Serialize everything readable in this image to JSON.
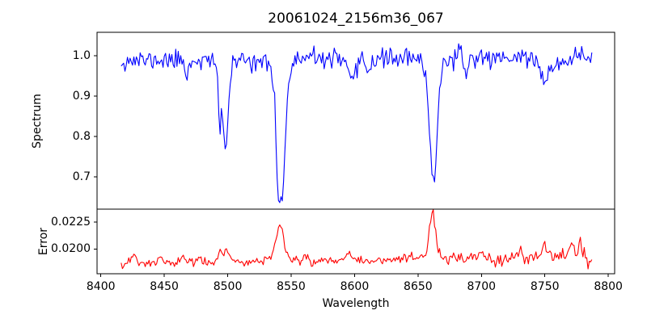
{
  "labels": {
    "title": "20061024_2156m36_067",
    "xlabel": "Wavelength",
    "ylabel_top": "Spectrum",
    "ylabel_bottom": "Error"
  },
  "chart_data": [
    {
      "type": "line",
      "name": "spectrum",
      "title": "20061024_2156m36_067",
      "ylabel": "Spectrum",
      "color": "#0000ff",
      "grid": false,
      "legend": "none",
      "xlim": [
        8397,
        8805
      ],
      "ylim": [
        0.62,
        1.058
      ],
      "yticks": [
        0.7,
        0.8,
        0.9,
        1.0
      ],
      "ytick_labels": [
        "0.7",
        "0.8",
        "0.9",
        "1.0"
      ],
      "x_start": 8416,
      "x_end": 8787,
      "n_points": 372,
      "baseline_start": 0.988,
      "baseline_end": 0.998,
      "noise_sigma": 0.012,
      "noise_ramp": {
        "start": 8787,
        "factor": 1.0
      },
      "seed": 11,
      "features_note": "absorption dips [center_wavelength, gaussian_width, amplitude]; Ca II triplet 8498/8542/8662",
      "features": [
        [
          8468.0,
          1.5,
          -0.035
        ],
        [
          8493.8,
          1.1,
          -0.12
        ],
        [
          8498.3,
          2.0,
          -0.175
        ],
        [
          8497.0,
          5.0,
          -0.04
        ],
        [
          8539.3,
          1.3,
          -0.16
        ],
        [
          8542.9,
          2.4,
          -0.27
        ],
        [
          8541.0,
          6.0,
          -0.07
        ],
        [
          8598.0,
          3.5,
          -0.06
        ],
        [
          8611.0,
          2.0,
          -0.025
        ],
        [
          8662.2,
          2.6,
          -0.26
        ],
        [
          8661.0,
          6.0,
          -0.05
        ],
        [
          8688.0,
          2.0,
          -0.03
        ],
        [
          8751.0,
          4.5,
          -0.055
        ],
        [
          8764.0,
          2.0,
          -0.02
        ]
      ]
    },
    {
      "type": "line",
      "name": "error",
      "ylabel": "Error",
      "xlabel": "Wavelength",
      "color": "#ff0000",
      "grid": false,
      "legend": "none",
      "xlim": [
        8397,
        8805
      ],
      "ylim": [
        0.0177,
        0.0237
      ],
      "yticks": [
        0.02,
        0.0225
      ],
      "ytick_labels": [
        "0.0200",
        "0.0225"
      ],
      "xticks": [
        8400,
        8450,
        8500,
        8550,
        8600,
        8650,
        8700,
        8750,
        8800
      ],
      "xtick_labels": [
        "8400",
        "8450",
        "8500",
        "8550",
        "8600",
        "8650",
        "8700",
        "8750",
        "8800"
      ],
      "x_start": 8416,
      "x_end": 8787,
      "n_points": 372,
      "baseline_start": 0.01865,
      "baseline_end": 0.0192,
      "noise_sigma": 0.00021,
      "noise_ramp": {
        "start": 8640,
        "factor": 1.9
      },
      "seed": 23,
      "features_note": "error peaks [center_wavelength, gaussian_width, amplitude]",
      "features": [
        [
          8417.0,
          2.0,
          -0.0004
        ],
        [
          8426.0,
          1.8,
          0.00085
        ],
        [
          8447.0,
          1.5,
          0.0004
        ],
        [
          8465.0,
          1.8,
          0.0006
        ],
        [
          8478.0,
          1.5,
          0.0004
        ],
        [
          8494.0,
          1.3,
          0.0011
        ],
        [
          8499.0,
          1.6,
          0.0013
        ],
        [
          8540.0,
          7.0,
          0.0005
        ],
        [
          8541.0,
          2.8,
          0.0031
        ],
        [
          8562.0,
          2.0,
          0.0004
        ],
        [
          8595.0,
          4.0,
          0.0007
        ],
        [
          8661.0,
          6.0,
          0.0007
        ],
        [
          8661.5,
          2.2,
          0.0038
        ],
        [
          8700.0,
          2.0,
          0.0004
        ],
        [
          8730.0,
          2.0,
          0.0005
        ],
        [
          8750.0,
          2.5,
          0.0009
        ],
        [
          8771.0,
          1.8,
          0.0013
        ],
        [
          8778.0,
          1.5,
          0.001
        ],
        [
          8786.0,
          1.5,
          -0.0009
        ]
      ]
    }
  ]
}
